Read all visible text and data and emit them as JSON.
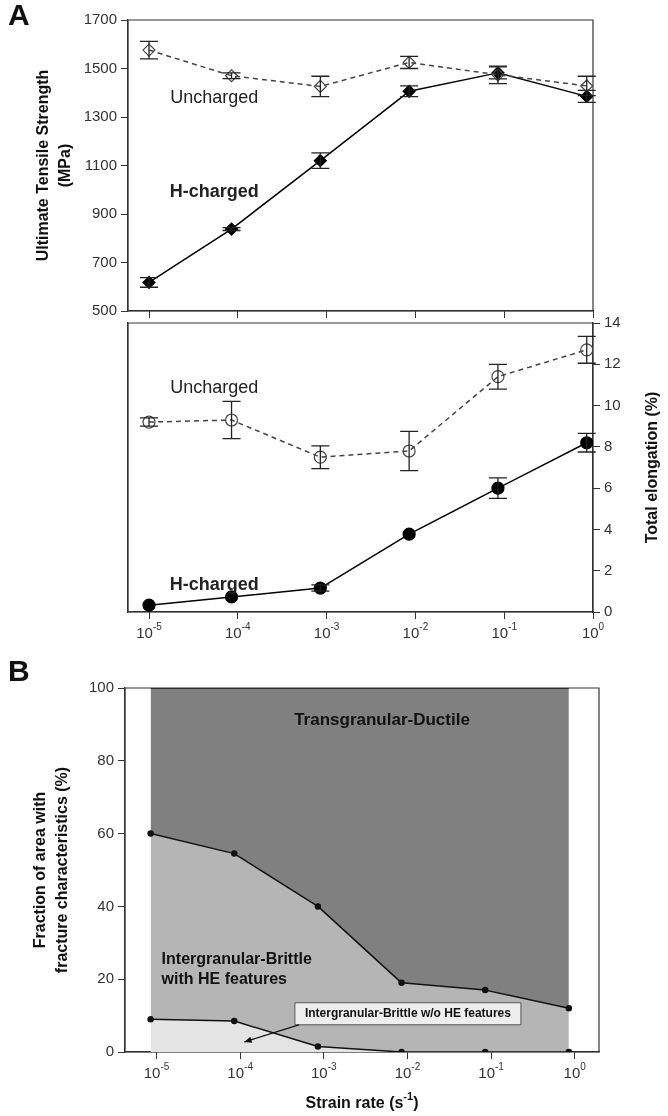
{
  "chart_data": [
    {
      "type": "line",
      "ylabel": "Ultimate Tensile Strength (MPa)",
      "annotations": [
        "A"
      ],
      "x": [
        1e-05,
        8.5e-05,
        0.00085,
        0.0085,
        0.085,
        0.85
      ],
      "log": "x",
      "xlim": [
        5.8e-06,
        1
      ],
      "xticks": [
        1e-05,
        0.0001,
        0.001,
        0.01,
        0.1,
        1
      ],
      "ylim": [
        500,
        1700
      ],
      "yticks": [
        500,
        700,
        900,
        1100,
        1300,
        1500,
        1700
      ],
      "tick_labels": "y",
      "series": [
        {
          "name": "Uncharged",
          "color": "#444444",
          "line_style": "dashed",
          "marker": "diamond",
          "values": [
            1576,
            1470,
            1426,
            1525,
            1474,
            1428
          ],
          "errors": [
            36,
            12,
            42,
            25,
            36,
            40
          ]
        },
        {
          "name": "H-charged",
          "color": "#000000",
          "line_style": "solid",
          "marker": "diamond",
          "values": [
            618,
            838,
            1120,
            1406,
            1482,
            1385
          ],
          "errors": [
            20,
            6,
            32,
            22,
            25,
            25
          ]
        }
      ]
    },
    {
      "type": "line",
      "y2label": "Total elongation (%)",
      "x": [
        1e-05,
        8.5e-05,
        0.00085,
        0.0085,
        0.085,
        0.85
      ],
      "log": "x",
      "xlim": [
        5.8e-06,
        1
      ],
      "xticks": [
        {
          "value": 1e-05,
          "label": "10$^{-5}$"
        },
        {
          "value": 0.0001,
          "label": "10$^{-4}$"
        },
        {
          "value": 0.001,
          "label": "10$^{-3}$"
        },
        {
          "value": 0.01,
          "label": "10$^{-2}$"
        },
        {
          "value": 0.1,
          "label": "10$^{-1}$"
        },
        {
          "value": 1,
          "label": "10$^{0}$"
        }
      ],
      "y2lim": [
        0,
        14
      ],
      "y2ticks": [
        0,
        2,
        4,
        6,
        8,
        10,
        12,
        14
      ],
      "series": [
        {
          "name": "Uncharged",
          "color": "#444444",
          "line_style": "dashed",
          "marker": "circle",
          "axis": "y2",
          "values": [
            9.2,
            9.3,
            7.5,
            7.8,
            11.4,
            12.7
          ],
          "errors": [
            0.2,
            0.9,
            0.55,
            0.95,
            0.6,
            0.65
          ]
        },
        {
          "name": "H-charged",
          "color": "#000000",
          "line_style": "solid",
          "marker": "circle",
          "axis": "y2",
          "values": [
            0.33,
            0.73,
            1.16,
            3.77,
            6.0,
            8.2
          ],
          "errors": [
            null,
            null,
            0.15,
            null,
            0.5,
            0.45
          ]
        }
      ]
    },
    {
      "type": "area",
      "stacked": true,
      "ylabel": "Fraction of area with fracture characteristics (%)",
      "xlabel": "Strain rate (s$^{-1}$)",
      "annotations": [
        "B"
      ],
      "x": [
        8.5e-06,
        8.5e-05,
        0.00085,
        0.0085,
        0.085,
        0.85
      ],
      "log": "x",
      "xlim": [
        4.2e-06,
        1.95
      ],
      "xticks": [
        {
          "value": 1e-05,
          "label": "10$^{-5}$"
        },
        {
          "value": 0.0001,
          "label": "10$^{-4}$"
        },
        {
          "value": 0.001,
          "label": "10$^{-3}$"
        },
        {
          "value": 0.01,
          "label": "10$^{-2}$"
        },
        {
          "value": 0.1,
          "label": "10$^{-1}$"
        },
        {
          "value": 1,
          "label": "10$^{0}$"
        }
      ],
      "ylim": [
        0,
        100
      ],
      "yticks": [
        0,
        20,
        40,
        60,
        80,
        100
      ],
      "series": [
        {
          "name": "Intergranular-Brittle w/o HE features",
          "color": "#e4e4e4",
          "marker": "circle",
          "values": [
            9,
            8.5,
            1.5,
            0,
            0,
            0
          ]
        },
        {
          "name": "Intergranular-Brittle with HE features",
          "color": "#b5b5b5",
          "marker": "circle",
          "values": [
            51,
            46,
            38.5,
            19,
            17,
            12
          ]
        },
        {
          "name": "Transgranular-Ductile",
          "color": "#808080",
          "marker": "none",
          "values": [
            40,
            45.5,
            60,
            81,
            83,
            88
          ]
        }
      ]
    }
  ]
}
